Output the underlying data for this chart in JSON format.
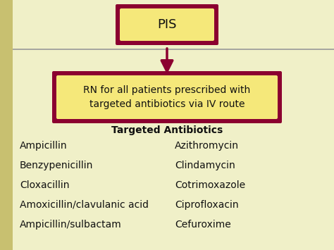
{
  "background_color": "#f0f0c8",
  "box_fill_color": "#f5e87a",
  "box_border_color": "#8b0030",
  "pis_text": "PIS",
  "rn_text": "RN for all patients prescribed with\ntargeted antibiotics via IV route",
  "section_title": "Targeted Antibiotics",
  "left_column": [
    "Ampicillin",
    "Benzypenicillin",
    "Cloxacillin",
    "Amoxicillin/clavulanic acid",
    "Ampicillin/sulbactam"
  ],
  "right_column": [
    "Azithromycin",
    "Clindamycin",
    "Cotrimoxazole",
    "Ciprofloxacin",
    "Cefuroxime"
  ],
  "text_color": "#111111",
  "arrow_color": "#8b0030",
  "hline_color": "#999999",
  "section_title_fontsize": 10,
  "list_fontsize": 10,
  "pis_fontsize": 13,
  "rn_fontsize": 10
}
